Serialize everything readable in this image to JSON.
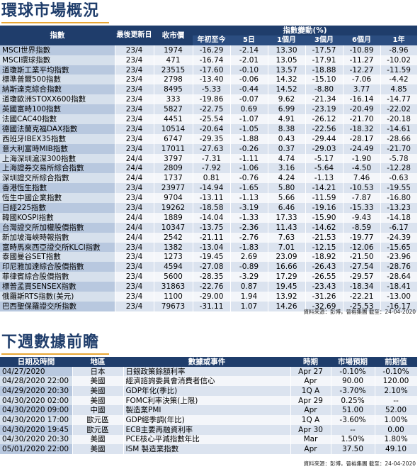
{
  "market": {
    "title": "環球市場概況",
    "headers": {
      "index": "指數",
      "last_update": "最後更新日",
      "close": "收市價",
      "change_group": "指數變動(%)",
      "ytd": "年初至今",
      "d5": "5日",
      "m1": "1個月",
      "m3": "3個月",
      "m6": "6個月",
      "y1": "1年"
    },
    "rows": [
      {
        "name": "MSCI世界指數",
        "date": "23/4",
        "close": "1974",
        "ytd": "-16.29",
        "d5": "-2.14",
        "m1": "13.30",
        "m3": "-17.57",
        "m6": "-10.89",
        "y1": "-8.96"
      },
      {
        "name": "MSCI環球指數",
        "date": "23/4",
        "close": "471",
        "ytd": "-16.74",
        "d5": "-2.01",
        "m1": "13.05",
        "m3": "-17.91",
        "m6": "-11.27",
        "y1": "-10.02"
      },
      {
        "name": "道瓊斯工業平均指數",
        "date": "23/4",
        "close": "23515",
        "ytd": "-17.60",
        "d5": "-0.10",
        "m1": "13.57",
        "m3": "-18.88",
        "m6": "-12.27",
        "y1": "-11.59"
      },
      {
        "name": "標準普爾500指數",
        "date": "23/4",
        "close": "2798",
        "ytd": "-13.40",
        "d5": "-0.06",
        "m1": "14.32",
        "m3": "-15.10",
        "m6": "-7.06",
        "y1": "-4.42"
      },
      {
        "name": "納斯達克綜合指數",
        "date": "23/4",
        "close": "8495",
        "ytd": "-5.33",
        "d5": "-0.44",
        "m1": "14.52",
        "m3": "-8.80",
        "m6": "3.77",
        "y1": "4.85"
      },
      {
        "name": "道瓊歐洲STOXX600指數",
        "date": "23/4",
        "close": "333",
        "ytd": "-19.86",
        "d5": "-0.07",
        "m1": "9.62",
        "m3": "-21.34",
        "m6": "-16.14",
        "y1": "-14.77"
      },
      {
        "name": "英國富時100指數",
        "date": "23/4",
        "close": "5827",
        "ytd": "-22.75",
        "d5": "0.69",
        "m1": "6.99",
        "m3": "-23.19",
        "m6": "-20.49",
        "y1": "-22.02"
      },
      {
        "name": "法國CAC40指數",
        "date": "23/4",
        "close": "4451",
        "ytd": "-25.54",
        "d5": "-1.07",
        "m1": "4.91",
        "m3": "-26.12",
        "m6": "-21.70",
        "y1": "-20.18"
      },
      {
        "name": "德國法蘭克福DAX指數",
        "date": "23/4",
        "close": "10514",
        "ytd": "-20.64",
        "d5": "-1.05",
        "m1": "8.38",
        "m3": "-22.56",
        "m6": "-18.32",
        "y1": "-14.61"
      },
      {
        "name": "西班牙IBEX35指數",
        "date": "23/4",
        "close": "6747",
        "ytd": "-29.35",
        "d5": "-1.88",
        "m1": "0.43",
        "m3": "-29.44",
        "m6": "-28.17",
        "y1": "-28.66"
      },
      {
        "name": "意大利富時MIB指數",
        "date": "23/4",
        "close": "17011",
        "ytd": "-27.63",
        "d5": "-0.26",
        "m1": "0.37",
        "m3": "-29.03",
        "m6": "-24.49",
        "y1": "-21.70"
      },
      {
        "name": "上海深圳滬深300指數",
        "date": "24/4",
        "close": "3797",
        "ytd": "-7.31",
        "d5": "-1.11",
        "m1": "4.74",
        "m3": "-5.17",
        "m6": "-1.90",
        "y1": "-5.78"
      },
      {
        "name": "上海證券交易所綜合指數",
        "date": "24/4",
        "close": "2809",
        "ytd": "-7.92",
        "d5": "-1.06",
        "m1": "3.16",
        "m3": "-5.64",
        "m6": "-4.50",
        "y1": "-12.28"
      },
      {
        "name": "深圳證交所綜合指數",
        "date": "24/4",
        "close": "1737",
        "ytd": "0.81",
        "d5": "-0.76",
        "m1": "4.24",
        "m3": "-1.13",
        "m6": "7.46",
        "y1": "-0.63"
      },
      {
        "name": "香港恆生指數",
        "date": "23/4",
        "close": "23977",
        "ytd": "-14.94",
        "d5": "-1.65",
        "m1": "5.80",
        "m3": "-14.21",
        "m6": "-10.53",
        "y1": "-19.55"
      },
      {
        "name": "恆生中國企業指數",
        "date": "23/4",
        "close": "9704",
        "ytd": "-13.11",
        "d5": "-1.13",
        "m1": "5.66",
        "m3": "-11.59",
        "m6": "-7.87",
        "y1": "-16.80"
      },
      {
        "name": "日經225指數",
        "date": "23/4",
        "close": "19262",
        "ytd": "-18.58",
        "d5": "-3.19",
        "m1": "6.46",
        "m3": "-19.16",
        "m6": "-15.33",
        "y1": "-13.23"
      },
      {
        "name": "韓國KOSPI指數",
        "date": "24/4",
        "close": "1889",
        "ytd": "-14.04",
        "d5": "-1.33",
        "m1": "17.33",
        "m3": "-15.90",
        "m6": "-9.43",
        "y1": "-14.18"
      },
      {
        "name": "台灣證交所加權股價指數",
        "date": "24/4",
        "close": "10347",
        "ytd": "-13.75",
        "d5": "-2.36",
        "m1": "11.43",
        "m3": "-14.62",
        "m6": "-8.59",
        "y1": "-6.17"
      },
      {
        "name": "新加坡海峽時報指數",
        "date": "24/4",
        "close": "2542",
        "ytd": "-21.11",
        "d5": "-2.76",
        "m1": "7.63",
        "m3": "-21.53",
        "m6": "-19.77",
        "y1": "-24.39"
      },
      {
        "name": "富時馬來西亞證交所KLCI指數",
        "date": "23/4",
        "close": "1382",
        "ytd": "-13.04",
        "d5": "-1.83",
        "m1": "7.01",
        "m3": "-12.15",
        "m6": "-12.06",
        "y1": "-15.65"
      },
      {
        "name": "泰國曼谷SET指數",
        "date": "23/4",
        "close": "1273",
        "ytd": "-19.45",
        "d5": "2.69",
        "m1": "23.09",
        "m3": "-18.92",
        "m6": "-21.50",
        "y1": "-23.96"
      },
      {
        "name": "印尼雅加達綜合股價指數",
        "date": "23/4",
        "close": "4594",
        "ytd": "-27.08",
        "d5": "-0.89",
        "m1": "16.66",
        "m3": "-26.43",
        "m6": "-27.54",
        "y1": "-28.76"
      },
      {
        "name": "菲律賓綜合股價指數",
        "date": "23/4",
        "close": "5600",
        "ytd": "-28.35",
        "d5": "-3.29",
        "m1": "17.29",
        "m3": "-26.55",
        "m6": "-29.57",
        "y1": "-28.64"
      },
      {
        "name": "標普孟買SENSEX指數",
        "date": "23/4",
        "close": "31863",
        "ytd": "-22.76",
        "d5": "0.87",
        "m1": "19.45",
        "m3": "-23.43",
        "m6": "-18.34",
        "y1": "-18.41"
      },
      {
        "name": "俄羅斯RTS指數(美元)",
        "date": "23/4",
        "close": "1100",
        "ytd": "-29.00",
        "d5": "1.94",
        "m1": "13.92",
        "m3": "-31.26",
        "m6": "-22.21",
        "y1": "-13.00"
      },
      {
        "name": "巴西聖保羅證交所指數",
        "date": "23/4",
        "close": "79673",
        "ytd": "-31.11",
        "d5": "1.07",
        "m1": "14.26",
        "m3": "-32.69",
        "m6": "-25.53",
        "y1": "-16.17"
      }
    ],
    "source": "資料來源：彭博，晉裕集團 截至：24-04-2020"
  },
  "outlook": {
    "title": "下週數據前瞻",
    "headers": {
      "datetime": "日期及時間",
      "region": "地區",
      "event": "數據或事件",
      "period": "時期",
      "forecast": "市場預期",
      "previous": "前期值"
    },
    "rows": [
      {
        "datetime": "04/27/2020",
        "region": "日本",
        "event": "日銀政策餘額利率",
        "period": "Apr 27",
        "forecast": "-0.10%",
        "previous": "-0.10%"
      },
      {
        "datetime": "04/28/2020 22:00",
        "region": "美國",
        "event": "經濟諮詢委員會消費者信心",
        "period": "Apr",
        "forecast": "90.00",
        "previous": "120.00"
      },
      {
        "datetime": "04/29/2020 20:30",
        "region": "美國",
        "event": "GDP年化(季比)",
        "period": "1Q A",
        "forecast": "-3.70%",
        "previous": "2.10%"
      },
      {
        "datetime": "04/30/2020 02:00",
        "region": "美國",
        "event": "FOMC利率決策(上限)",
        "period": "Apr 29",
        "forecast": "0.25%",
        "previous": "--"
      },
      {
        "datetime": "04/30/2020 09:00",
        "region": "中國",
        "event": "製造業PMI",
        "period": "Apr",
        "forecast": "51.00",
        "previous": "52.00"
      },
      {
        "datetime": "04/30/2020 17:00",
        "region": "歐元區",
        "event": "GDP經季調(年比)",
        "period": "1Q A",
        "forecast": "-3.60%",
        "previous": "1.00%"
      },
      {
        "datetime": "04/30/2020 19:45",
        "region": "歐元區",
        "event": "ECB主要再融資利率",
        "period": "Apr 30",
        "forecast": "--",
        "previous": "0.00"
      },
      {
        "datetime": "04/30/2020 20:30",
        "region": "美國",
        "event": "PCE核心平減指數年比",
        "period": "Mar",
        "forecast": "1.50%",
        "previous": "1.80%"
      },
      {
        "datetime": "05/01/2020 22:00",
        "region": "美國",
        "event": "ISM 製造業指數",
        "period": "Apr",
        "forecast": "37.50",
        "previous": "49.10"
      }
    ],
    "source": "資料來源：彭博，晉裕集團 截至：24-04-2020"
  }
}
